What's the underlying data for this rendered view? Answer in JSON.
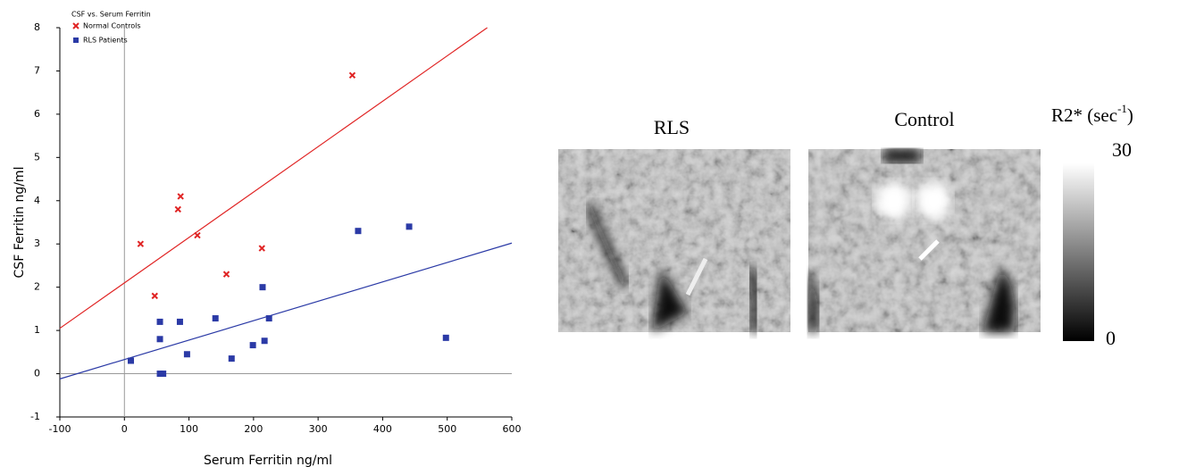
{
  "chart_data": {
    "type": "scatter",
    "title": "CSF vs. Serum Ferritin",
    "x_label": "Serum Ferritin ng/ml",
    "y_label": "CSF Ferritin ng/ml",
    "xlim": [
      -100,
      600
    ],
    "ylim": [
      -1,
      8
    ],
    "xticks": [
      -100,
      0,
      100,
      200,
      300,
      400,
      500,
      600
    ],
    "yticks": [
      -1,
      0,
      1,
      2,
      3,
      4,
      5,
      6,
      7,
      8
    ],
    "grid": false,
    "legend": "top-left",
    "series": [
      {
        "name": "Normal Controls",
        "color": "#e02424",
        "marker": "x",
        "x": [
          353,
          87,
          83,
          25,
          113,
          47,
          158,
          213
        ],
        "values": [
          6.9,
          4.1,
          3.8,
          3.0,
          3.2,
          1.8,
          2.3,
          2.9
        ],
        "trend_x": [
          -100,
          562
        ],
        "trend_y": [
          1.05,
          8.0
        ]
      },
      {
        "name": "RLS  Patients",
        "color": "#2b3aa6",
        "marker": "square",
        "x": [
          10,
          55,
          55,
          55,
          60,
          86,
          97,
          141,
          166,
          199,
          214,
          217,
          224,
          362,
          441,
          498
        ],
        "values": [
          0.3,
          1.2,
          0.8,
          0,
          0,
          1.2,
          0.45,
          1.28,
          0.35,
          0.66,
          2.0,
          0.76,
          1.28,
          3.3,
          3.4,
          0.83
        ],
        "trend_x": [
          -100,
          600
        ],
        "trend_y": [
          -0.12,
          3.02
        ]
      }
    ]
  },
  "figure": {
    "panels": [
      "RLS",
      "Control"
    ],
    "colorbar": {
      "title": "R2* ",
      "unit_open": "(sec",
      "unit_sup": "-1",
      "unit_close": ")",
      "max": 30,
      "min": 0
    }
  }
}
